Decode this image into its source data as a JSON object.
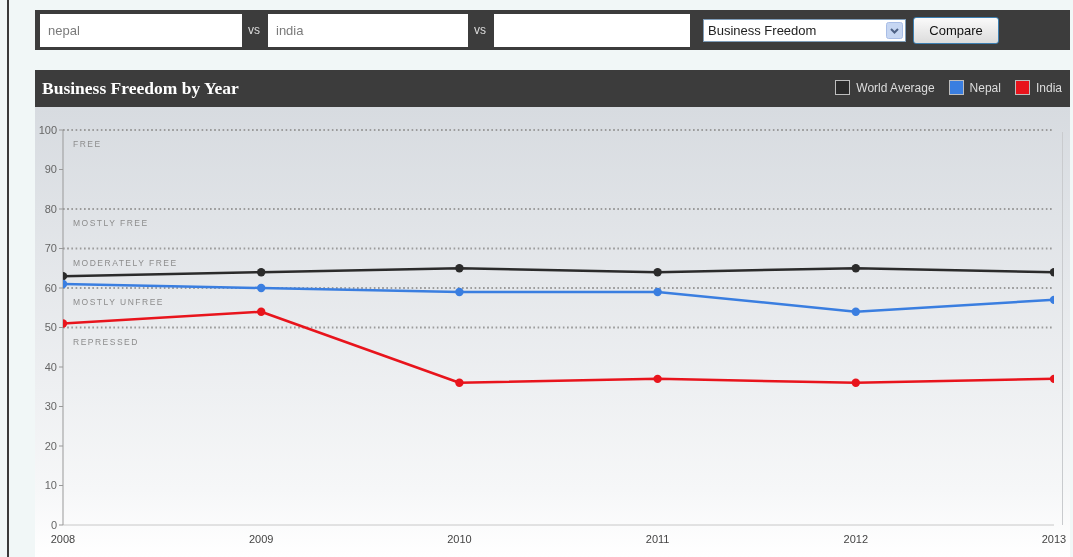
{
  "chart_data": {
    "type": "line",
    "title": "Business Freedom by Year",
    "x": [
      2008,
      2009,
      2010,
      2011,
      2012,
      2013
    ],
    "xlim": [
      2008,
      2013
    ],
    "xticks": [
      2008,
      2009,
      2010,
      2011,
      2012,
      2013
    ],
    "ylim": [
      0,
      100
    ],
    "yticks": [
      0,
      10,
      20,
      30,
      40,
      50,
      60,
      70,
      80,
      90,
      100
    ],
    "series": [
      {
        "name": "World Average",
        "color": "#2b2b2b",
        "values": [
          63,
          64,
          65,
          64,
          65,
          64
        ]
      },
      {
        "name": "Nepal",
        "color": "#3a7ee0",
        "values": [
          61,
          60,
          59,
          59,
          54,
          57
        ]
      },
      {
        "name": "India",
        "color": "#e8141c",
        "values": [
          51,
          54,
          36,
          37,
          36,
          37
        ]
      }
    ],
    "ref_lines": [
      {
        "axis": "y",
        "value": 100,
        "label": "FREE",
        "color": "#999999",
        "line_style": "dotted"
      },
      {
        "axis": "y",
        "value": 80,
        "label": "MOSTLY FREE",
        "color": "#999999",
        "line_style": "dotted"
      },
      {
        "axis": "y",
        "value": 70,
        "label": "MODERATELY FREE",
        "color": "#999999",
        "line_style": "dotted"
      },
      {
        "axis": "y",
        "value": 60,
        "label": "MOSTLY UNFREE",
        "color": "#999999",
        "line_style": "dotted"
      },
      {
        "axis": "y",
        "value": 50,
        "label": "REPRESSED",
        "color": "#999999",
        "line_style": "dotted"
      }
    ],
    "legend": "top right",
    "marker": "circle",
    "line_style": "solid",
    "annotations": [
      "nepal",
      "vs",
      "india",
      "vs",
      "Business Freedom",
      "Compare"
    ]
  }
}
